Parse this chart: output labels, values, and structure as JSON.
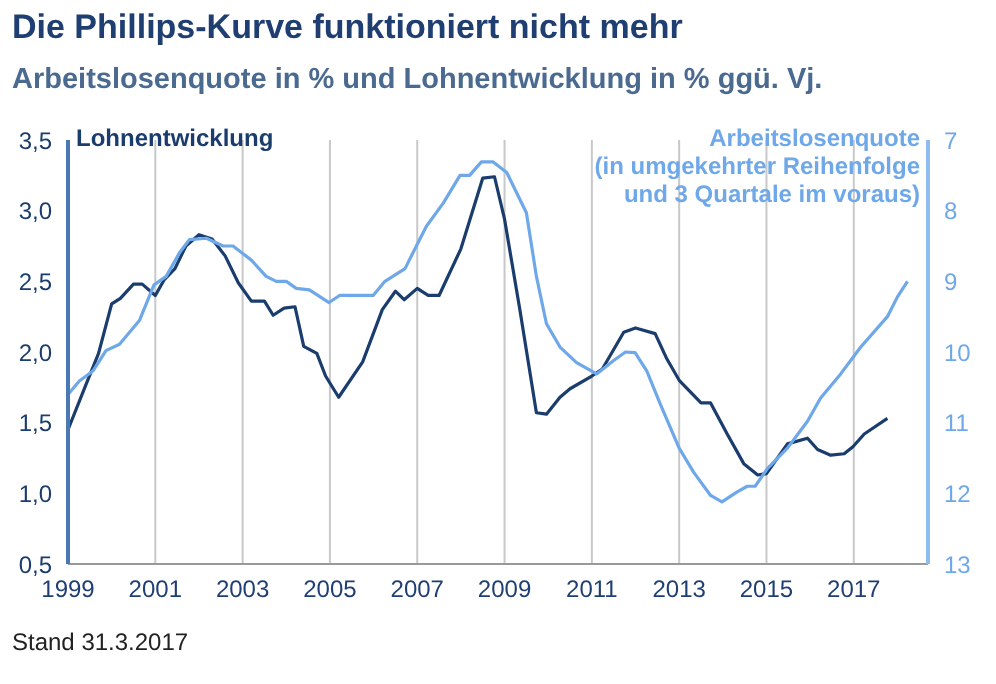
{
  "chart_data": {
    "type": "line",
    "title": "Die Phillips-Kurve funktioniert nicht mehr",
    "subtitle": "Arbeitslosenquote in % und Lohnentwicklung in % ggü. Vj.",
    "annotations": [
      "Stand 31.3.2017"
    ],
    "xlim": [
      1999,
      2018.7
    ],
    "xticks": [
      1999,
      2001,
      2003,
      2005,
      2007,
      2009,
      2011,
      2013,
      2015,
      2017
    ],
    "ylim": [
      0.5,
      3.5
    ],
    "yticks": [
      {
        "value": 0.5,
        "label": "0,5"
      },
      {
        "value": 1,
        "label": "1,0"
      },
      {
        "value": 1.5,
        "label": "1,5"
      },
      {
        "value": 2,
        "label": "2,0"
      },
      {
        "value": 2.5,
        "label": "2,5"
      },
      {
        "value": 3,
        "label": "3,0"
      },
      {
        "value": 3.5,
        "label": "3,5"
      }
    ],
    "y2lim": [
      13,
      7
    ],
    "y2ticks": [
      7,
      8,
      9,
      10,
      11,
      12,
      13
    ],
    "grid": "x",
    "marker": "none",
    "line_style": "solid",
    "series": [
      {
        "name": "Lohnentwicklung",
        "color": "#1b3d6e",
        "x": [
          1999.0,
          1999.4,
          1999.7,
          2000.0,
          2000.2,
          2000.5,
          2000.7,
          2001.0,
          2001.2,
          2001.45,
          2001.7,
          2002.0,
          2002.3,
          2002.6,
          2002.9,
          2003.2,
          2003.5,
          2003.7,
          2003.95,
          2004.2,
          2004.4,
          2004.7,
          2004.9,
          2005.2,
          2005.75,
          2006.2,
          2006.5,
          2006.7,
          2007.0,
          2007.25,
          2007.5,
          2008.0,
          2008.5,
          2008.77,
          2009.0,
          2009.35,
          2009.73,
          2009.96,
          2010.27,
          2010.5,
          2011.0,
          2011.24,
          2011.73,
          2012.0,
          2012.45,
          2012.72,
          2013.0,
          2013.5,
          2013.72,
          2014.1,
          2014.48,
          2014.8,
          2015.0,
          2015.48,
          2015.94,
          2016.17,
          2016.47,
          2016.78,
          2016.98,
          2017.24,
          2017.77
        ],
        "values": [
          1.45,
          1.76,
          1.99,
          2.34,
          2.38,
          2.48,
          2.48,
          2.4,
          2.51,
          2.59,
          2.75,
          2.83,
          2.8,
          2.68,
          2.49,
          2.36,
          2.36,
          2.26,
          2.31,
          2.32,
          2.04,
          1.99,
          1.83,
          1.68,
          1.93,
          2.3,
          2.43,
          2.37,
          2.45,
          2.4,
          2.4,
          2.73,
          3.23,
          3.24,
          2.94,
          2.3,
          1.57,
          1.56,
          1.68,
          1.74,
          1.83,
          1.88,
          2.14,
          2.17,
          2.13,
          1.95,
          1.8,
          1.64,
          1.64,
          1.42,
          1.21,
          1.13,
          1.14,
          1.35,
          1.39,
          1.31,
          1.27,
          1.28,
          1.33,
          1.42,
          1.53
        ]
      },
      {
        "name": "Arbeitslosenquote\n(in umgekehrter Reihenfolge\nund 3 Quartale im voraus)",
        "color": "#6fa8e8",
        "axis": "y2",
        "x": [
          1999.0,
          1999.26,
          1999.57,
          1999.87,
          2000.18,
          2000.64,
          2000.97,
          2001.25,
          2001.55,
          2001.78,
          2002.17,
          2002.55,
          2002.78,
          2003.2,
          2003.54,
          2003.77,
          2004.0,
          2004.23,
          2004.53,
          2004.98,
          2005.22,
          2005.99,
          2006.26,
          2006.72,
          2006.98,
          2007.21,
          2007.6,
          2007.98,
          2008.2,
          2008.47,
          2008.74,
          2009.05,
          2009.5,
          2009.73,
          2009.96,
          2010.27,
          2010.65,
          2011.11,
          2011.5,
          2011.77,
          2011.99,
          2012.26,
          2012.57,
          2013.0,
          2013.33,
          2013.72,
          2013.98,
          2014.33,
          2014.56,
          2014.74,
          2015.02,
          2015.48,
          2015.94,
          2016.24,
          2016.7,
          2017.16,
          2017.77,
          2018.0,
          2018.23
        ],
        "values": [
          10.6,
          10.41,
          10.27,
          9.98,
          9.89,
          9.55,
          9.05,
          8.93,
          8.6,
          8.41,
          8.39,
          8.5,
          8.5,
          8.7,
          8.93,
          9.0,
          9.0,
          9.1,
          9.12,
          9.3,
          9.2,
          9.2,
          9.0,
          8.82,
          8.5,
          8.22,
          7.89,
          7.5,
          7.5,
          7.31,
          7.31,
          7.46,
          8.03,
          8.93,
          9.6,
          9.93,
          10.15,
          10.31,
          10.12,
          10.0,
          10.01,
          10.27,
          10.74,
          11.36,
          11.7,
          12.03,
          12.12,
          11.98,
          11.9,
          11.9,
          11.65,
          11.36,
          10.98,
          10.65,
          10.31,
          9.93,
          9.5,
          9.22,
          9.0
        ]
      }
    ]
  }
}
